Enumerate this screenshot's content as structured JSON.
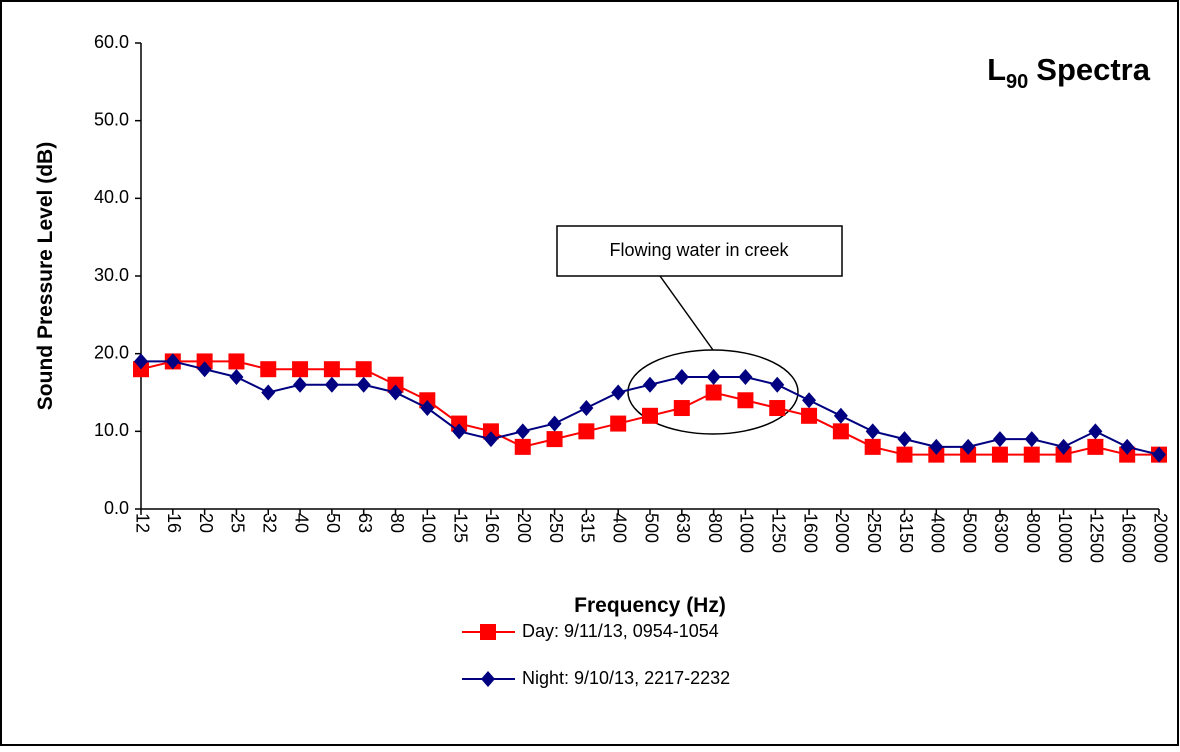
{
  "chart_data": {
    "type": "line",
    "title": {
      "base": "L",
      "subscript": "90",
      "text": "Spectra"
    },
    "x_label": "Frequency (Hz)",
    "y_label": "Sound  Pressure Level (dB)",
    "annotation": "Flowing water in creek",
    "categories": [
      "12",
      "16",
      "20",
      "25",
      "32",
      "40",
      "50",
      "63",
      "80",
      "100",
      "125",
      "160",
      "200",
      "250",
      "315",
      "400",
      "500",
      "630",
      "800",
      "1000",
      "1250",
      "1600",
      "2000",
      "2500",
      "3150",
      "4000",
      "5000",
      "6300",
      "8000",
      "10000",
      "12500",
      "16000",
      "20000"
    ],
    "series": [
      {
        "name": "Day: 9/11/13, 0954-1054",
        "color": "#ff0000",
        "marker": "square",
        "values": [
          18,
          19,
          19,
          19,
          18,
          18,
          18,
          18,
          16,
          14,
          11,
          10,
          8,
          9,
          10,
          11,
          12,
          13,
          15,
          14,
          13,
          12,
          10,
          8,
          7,
          7,
          7,
          7,
          7,
          7,
          8,
          7,
          7
        ]
      },
      {
        "name": "Night: 9/10/13, 2217-2232",
        "color": "#000080",
        "marker": "diamond",
        "values": [
          19,
          19,
          18,
          17,
          15,
          16,
          16,
          16,
          15,
          13,
          10,
          9,
          10,
          11,
          13,
          15,
          16,
          17,
          17,
          17,
          16,
          14,
          12,
          10,
          9,
          8,
          8,
          9,
          9,
          8,
          10,
          8,
          7
        ]
      }
    ],
    "ylim": [
      0,
      60
    ],
    "yticks": [
      {
        "value": 0,
        "label": "0.0"
      },
      {
        "value": 10,
        "label": "10.0"
      },
      {
        "value": 20,
        "label": "20.0"
      },
      {
        "value": 30,
        "label": "30.0"
      },
      {
        "value": 40,
        "label": "40.0"
      },
      {
        "value": 50,
        "label": "50.0"
      },
      {
        "value": 60,
        "label": "60.0"
      }
    ],
    "grid": false,
    "legend": "bottom"
  }
}
